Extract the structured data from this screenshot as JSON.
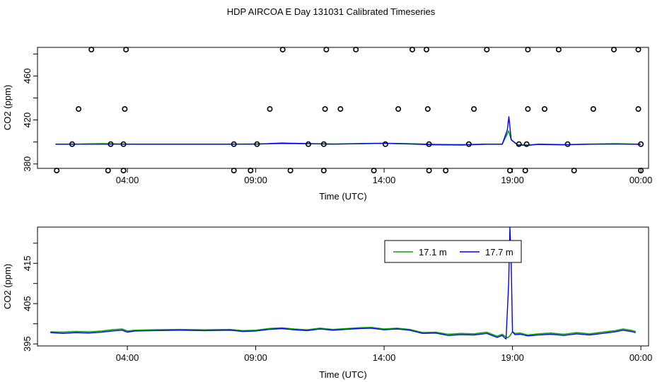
{
  "page_title": "HDP AIRCOA E  Day 131031  Calibrated Timeseries",
  "chart_data": [
    {
      "type": "scatter",
      "xlabel": "Time (UTC)",
      "ylabel": "CO2 (ppm)",
      "x_ticks": [
        "04:00",
        "09:00",
        "14:00",
        "19:00",
        "00:00"
      ],
      "x_tick_hours": [
        4,
        9,
        14,
        19,
        24
      ],
      "xlim_hours": [
        0.5,
        24.3
      ],
      "y_ticks": [
        380,
        420,
        460
      ],
      "ylim": [
        376,
        486
      ],
      "minor_y_ticks": [
        400,
        440,
        480
      ],
      "series": [
        {
          "color": "#00aa00",
          "x": [
            1.2,
            2,
            3,
            4,
            5,
            6,
            7,
            8,
            9,
            10,
            11,
            12,
            13,
            14,
            15,
            16,
            17,
            18,
            18.6,
            18.85,
            18.95,
            19.2,
            19.6,
            20,
            21,
            22,
            23,
            24
          ],
          "y": [
            398,
            398,
            398.5,
            398,
            398,
            398,
            398,
            398,
            398.2,
            398.6,
            398.4,
            398.2,
            398.5,
            398.8,
            398.4,
            397.8,
            397.6,
            398,
            398,
            410,
            402,
            397.4,
            397.2,
            398,
            397.6,
            398,
            398.4,
            398
          ]
        },
        {
          "color": "#0000ff",
          "x": [
            1.2,
            2,
            3,
            4,
            5,
            6,
            7,
            8,
            9,
            10,
            11,
            12,
            13,
            14,
            15,
            16,
            17,
            18,
            18.6,
            18.8,
            18.86,
            18.95,
            19.2,
            19.6,
            20,
            21,
            22,
            23,
            24
          ],
          "y": [
            398,
            398,
            398,
            398,
            398,
            398,
            398,
            398,
            398,
            399,
            398.6,
            398,
            398.4,
            398.8,
            398.2,
            397.4,
            397.2,
            398,
            398,
            411,
            423,
            402,
            397.2,
            397,
            397.8,
            397.4,
            398,
            398.2,
            397.8
          ]
        }
      ],
      "markers": [
        [
          1.25,
          374
        ],
        [
          3.25,
          374
        ],
        [
          3.85,
          374
        ],
        [
          8.15,
          374
        ],
        [
          8.8,
          374
        ],
        [
          10.35,
          374
        ],
        [
          11.65,
          374
        ],
        [
          13.6,
          374
        ],
        [
          15.75,
          374
        ],
        [
          16.4,
          374
        ],
        [
          18.9,
          374
        ],
        [
          19.5,
          374
        ],
        [
          21.4,
          374
        ],
        [
          24.0,
          374
        ],
        [
          1.85,
          398
        ],
        [
          3.35,
          398
        ],
        [
          3.85,
          398
        ],
        [
          8.15,
          398
        ],
        [
          9.05,
          398
        ],
        [
          11.05,
          398
        ],
        [
          11.65,
          398
        ],
        [
          14.05,
          398
        ],
        [
          15.75,
          398
        ],
        [
          17.3,
          398
        ],
        [
          19.25,
          398
        ],
        [
          19.55,
          398
        ],
        [
          21.15,
          398
        ],
        [
          24.0,
          398
        ],
        [
          2.1,
          430
        ],
        [
          3.9,
          430
        ],
        [
          9.55,
          430
        ],
        [
          11.7,
          430
        ],
        [
          12.3,
          430
        ],
        [
          14.55,
          430
        ],
        [
          15.7,
          430
        ],
        [
          17.5,
          430
        ],
        [
          19.6,
          430
        ],
        [
          20.25,
          430
        ],
        [
          22.15,
          430
        ],
        [
          23.9,
          430
        ],
        [
          2.6,
          484
        ],
        [
          3.95,
          484
        ],
        [
          10.05,
          484
        ],
        [
          11.75,
          484
        ],
        [
          12.9,
          484
        ],
        [
          15.1,
          484
        ],
        [
          15.65,
          484
        ],
        [
          18.0,
          484
        ],
        [
          19.6,
          484
        ],
        [
          20.8,
          484
        ],
        [
          22.95,
          484
        ],
        [
          23.9,
          484
        ]
      ]
    },
    {
      "type": "line",
      "xlabel": "Time (UTC)",
      "ylabel": "CO2 (ppm)",
      "x_ticks": [
        "04:00",
        "09:00",
        "14:00",
        "19:00",
        "00:00"
      ],
      "x_tick_hours": [
        4,
        9,
        14,
        19,
        24
      ],
      "xlim_hours": [
        0.5,
        24.3
      ],
      "y_ticks": [
        395,
        405,
        415
      ],
      "minor_y_ticks": [
        400,
        410,
        420
      ],
      "ylim": [
        394.5,
        424
      ],
      "legend": {
        "placement": "top-right",
        "entries": [
          {
            "name": "17.1 m",
            "color": "#00aa00"
          },
          {
            "name": "17.7 m",
            "color": "#0000ff"
          }
        ]
      },
      "series": [
        {
          "name": "17.1 m",
          "color": "#00aa00",
          "x": [
            1.0,
            1.5,
            2,
            2.5,
            3,
            3.4,
            3.8,
            4.0,
            4.3,
            5,
            6,
            7,
            8,
            8.5,
            9,
            9.5,
            10,
            10.5,
            11,
            11.5,
            12,
            12.5,
            13,
            13.5,
            14,
            14.5,
            15,
            15.5,
            16,
            16.5,
            17,
            17.5,
            18,
            18.4,
            18.6,
            18.8,
            18.9,
            19.0,
            19.1,
            19.3,
            19.6,
            20,
            20.5,
            21,
            21.5,
            22,
            22.5,
            23,
            23.3,
            23.6,
            23.8
          ],
          "y": [
            398,
            397.9,
            398.1,
            398,
            398.2,
            398.5,
            398.7,
            398.2,
            398.4,
            398.5,
            398.6,
            398.5,
            398.6,
            398.3,
            398.4,
            398.8,
            399,
            398.7,
            398.5,
            398.9,
            398.6,
            398.8,
            399,
            399.1,
            398.7,
            398.9,
            398.6,
            397.8,
            397.9,
            397.4,
            397.6,
            397.5,
            397.9,
            396.9,
            397.4,
            396.5,
            397,
            398,
            397.6,
            397.7,
            397.2,
            397.5,
            397.7,
            397.4,
            397.8,
            397.5,
            397.9,
            398.3,
            398.7,
            398.4,
            398.1
          ]
        },
        {
          "name": "17.7 m",
          "color": "#0000ff",
          "x": [
            1.0,
            1.5,
            2,
            2.5,
            3,
            3.4,
            3.8,
            4.0,
            4.3,
            5,
            6,
            7,
            8,
            8.5,
            9,
            9.5,
            10,
            10.5,
            11,
            11.5,
            12,
            12.5,
            13,
            13.5,
            14,
            14.5,
            15,
            15.5,
            16,
            16.5,
            17,
            17.5,
            18,
            18.4,
            18.6,
            18.75,
            18.85,
            18.9,
            18.95,
            19.0,
            19.1,
            19.3,
            19.6,
            20,
            20.5,
            21,
            21.5,
            22,
            22.5,
            23,
            23.3,
            23.6,
            23.8
          ],
          "y": [
            397.8,
            397.6,
            397.8,
            397.7,
            397.9,
            398.2,
            398.4,
            397.9,
            398.2,
            398.3,
            398.4,
            398.3,
            398.4,
            398.1,
            398.2,
            398.6,
            398.8,
            398.5,
            398.3,
            398.7,
            398.4,
            398.6,
            398.8,
            398.9,
            398.5,
            398.7,
            398.4,
            397.6,
            397.7,
            397.1,
            397.3,
            397.2,
            397.6,
            396.6,
            397.1,
            396.2,
            410,
            424,
            415,
            398,
            397.3,
            397.4,
            397,
            397.2,
            397.4,
            397.1,
            397.5,
            397.2,
            397.6,
            398,
            398.4,
            398.1,
            397.8
          ]
        }
      ]
    }
  ]
}
